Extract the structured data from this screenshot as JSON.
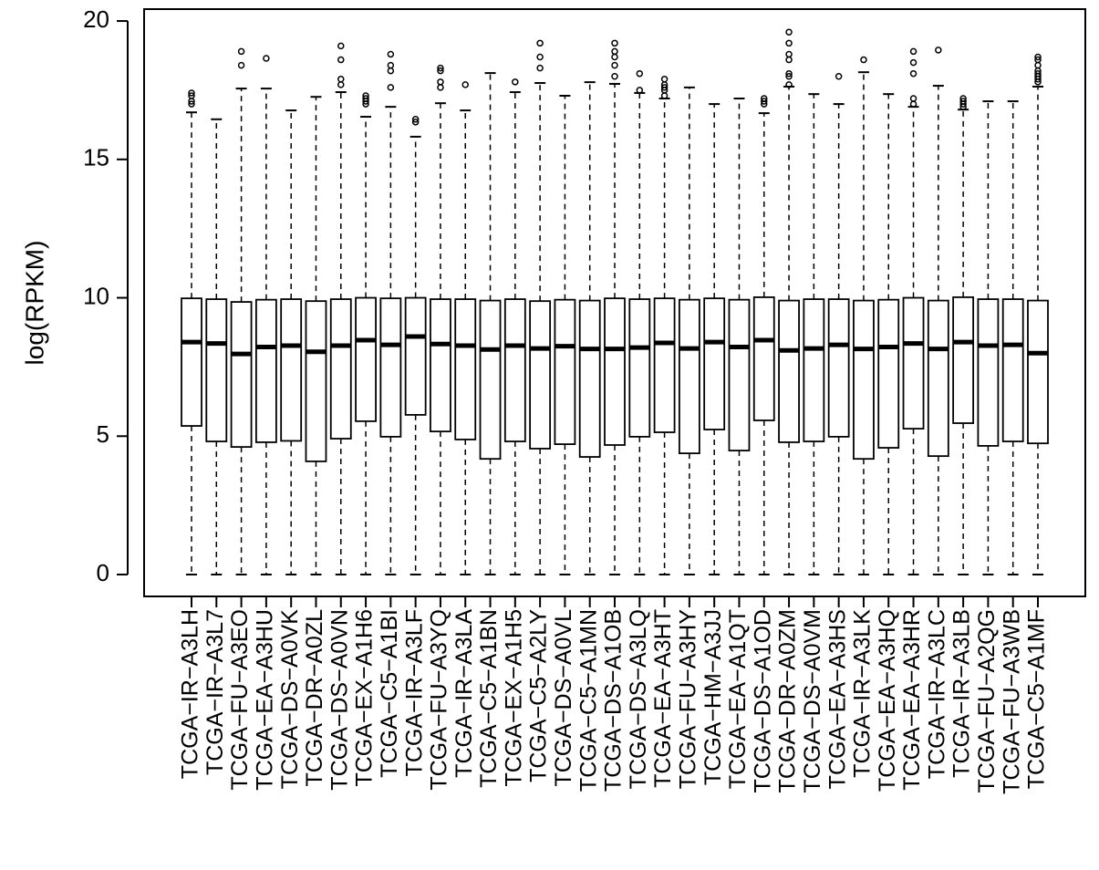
{
  "chart_data": {
    "type": "boxplot",
    "y_label": "log(RPKM)",
    "ylim": [
      -0.79,
      20.43
    ],
    "yticks": [
      0,
      5,
      10,
      15,
      20
    ],
    "color": "#000000",
    "categories": [
      "TCGA−IR−A3LH",
      "TCGA−IR−A3L7",
      "TCGA−FU−A3EO",
      "TCGA−EA−A3HU",
      "TCGA−DS−A0VK",
      "TCGA−DR−A0ZL",
      "TCGA−DS−A0VN",
      "TCGA−EX−A1H6",
      "TCGA−C5−A1BI",
      "TCGA−IR−A3LF",
      "TCGA−FU−A3YQ",
      "TCGA−IR−A3LA",
      "TCGA−C5−A1BN",
      "TCGA−EX−A1H5",
      "TCGA−C5−A2LY",
      "TCGA−DS−A0VL",
      "TCGA−C5−A1MN",
      "TCGA−DS−A1OB",
      "TCGA−DS−A3LQ",
      "TCGA−EA−A3HT",
      "TCGA−FU−A3HY",
      "TCGA−HM−A3JJ",
      "TCGA−EA−A1QT",
      "TCGA−DS−A1OD",
      "TCGA−DR−A0ZM",
      "TCGA−DS−A0VM",
      "TCGA−EA−A3HS",
      "TCGA−IR−A3LK",
      "TCGA−EA−A3HQ",
      "TCGA−EA−A3HR",
      "TCGA−IR−A3LC",
      "TCGA−IR−A3LB",
      "TCGA−FU−A2QG",
      "TCGA−FU−A3WB",
      "TCGA−C5−A1MF"
    ],
    "min": [
      0,
      0,
      0,
      0,
      0,
      0,
      0,
      0,
      0,
      0,
      0,
      0,
      0,
      0,
      0,
      0,
      0,
      0,
      0,
      0,
      0,
      0,
      0,
      0,
      0,
      0,
      0,
      0,
      0,
      0,
      0,
      0,
      0,
      0,
      0
    ],
    "q1": [
      5.37,
      4.81,
      4.61,
      4.78,
      4.83,
      4.09,
      4.91,
      5.54,
      4.98,
      5.77,
      5.17,
      4.88,
      4.18,
      4.81,
      4.55,
      4.71,
      4.25,
      4.68,
      4.98,
      5.14,
      4.38,
      5.24,
      4.48,
      5.57,
      4.78,
      4.81,
      4.98,
      4.18,
      4.58,
      5.27,
      4.28,
      5.47,
      4.65,
      4.81,
      4.74
    ],
    "median": [
      8.4,
      8.35,
      7.97,
      8.22,
      8.27,
      8.05,
      8.27,
      8.47,
      8.3,
      8.6,
      8.33,
      8.27,
      8.13,
      8.27,
      8.17,
      8.25,
      8.15,
      8.15,
      8.2,
      8.37,
      8.17,
      8.4,
      8.22,
      8.47,
      8.1,
      8.17,
      8.3,
      8.15,
      8.22,
      8.35,
      8.15,
      8.4,
      8.27,
      8.3,
      8.0
    ],
    "q3": [
      9.98,
      9.95,
      9.85,
      9.93,
      9.95,
      9.88,
      9.95,
      10.0,
      9.98,
      10.0,
      9.95,
      9.95,
      9.9,
      9.95,
      9.88,
      9.93,
      9.9,
      9.98,
      9.95,
      9.98,
      9.93,
      9.98,
      9.93,
      10.02,
      9.9,
      9.95,
      9.95,
      9.9,
      9.93,
      10.0,
      9.9,
      10.02,
      9.95,
      9.95,
      9.9
    ],
    "max": [
      16.7,
      16.45,
      17.56,
      17.56,
      16.77,
      17.26,
      17.43,
      16.54,
      16.9,
      15.82,
      17.03,
      16.77,
      18.12,
      17.43,
      17.76,
      17.3,
      17.79,
      17.73,
      17.4,
      17.2,
      17.6,
      17.0,
      17.2,
      16.67,
      17.63,
      17.36,
      17.0,
      18.15,
      17.36,
      16.9,
      17.66,
      16.8,
      17.1,
      17.1,
      17.63
    ],
    "outliers": [
      [
        17.0,
        17.1,
        17.3,
        17.4
      ],
      [],
      [
        18.4,
        18.9
      ],
      [
        18.65
      ],
      [],
      [],
      [
        17.7,
        17.9,
        18.6,
        19.1
      ],
      [
        17.0,
        17.1,
        17.2,
        17.3
      ],
      [
        17.6,
        18.2,
        18.4,
        18.8
      ],
      [
        16.35,
        16.45
      ],
      [
        17.6,
        17.8,
        18.2,
        18.3
      ],
      [
        17.7
      ],
      [],
      [
        17.8
      ],
      [
        18.3,
        18.7,
        19.2
      ],
      [],
      [],
      [
        18.0,
        18.4,
        18.7,
        18.9,
        19.2
      ],
      [
        17.5,
        18.1
      ],
      [
        17.3,
        17.5,
        17.6,
        17.7,
        17.9
      ],
      [],
      [],
      [],
      [
        17.0,
        17.1,
        17.2
      ],
      [
        17.7,
        18.0,
        18.1,
        18.6,
        18.8,
        19.2,
        19.6
      ],
      [],
      [
        18.0
      ],
      [
        18.6
      ],
      [],
      [
        17.0,
        17.2,
        18.1,
        18.5,
        18.9
      ],
      [
        18.95
      ],
      [
        16.9,
        17.0,
        17.1,
        17.2
      ],
      [],
      [],
      [
        17.8,
        17.9,
        18.0,
        18.1,
        18.2,
        18.4,
        18.6,
        18.7
      ]
    ]
  }
}
